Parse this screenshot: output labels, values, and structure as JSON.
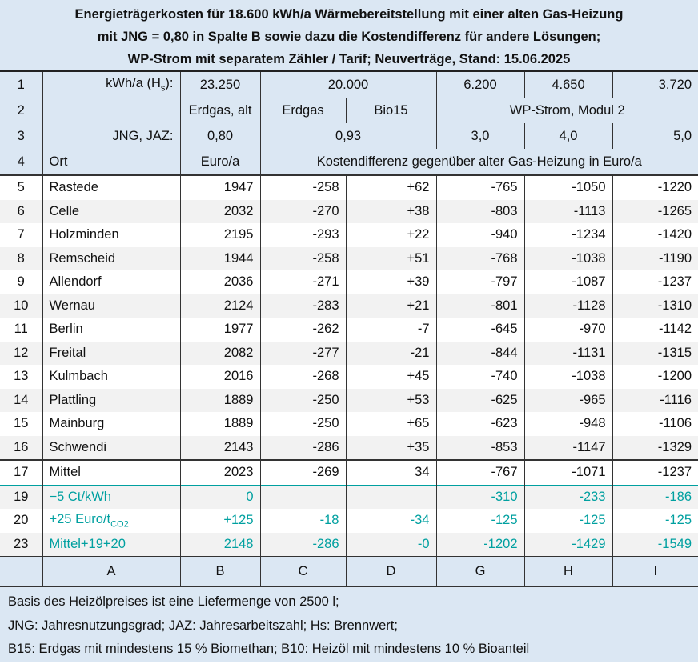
{
  "title": [
    "Energieträgerkosten für 18.600 kWh/a Wärmebereitstellung mit einer alten Gas-Heizung",
    "mit JNG = 0,80 in Spalte B sowie dazu die Kostendifferenz für andere Lösungen;",
    "WP-Strom mit separatem Zähler / Tarif; Neuverträge, Stand: 15.06.2025"
  ],
  "header": {
    "r1": {
      "n": "1",
      "label": "kWh/a (H",
      "label_sub": "s",
      "label_end": "):",
      "b": "23.250",
      "cd": "20.000",
      "g": "6.200",
      "h": "4.650",
      "i": "3.720"
    },
    "r2": {
      "n": "2",
      "b": "Erdgas, alt",
      "c": "Erdgas",
      "d": "Bio15",
      "ghi": "WP-Strom, Modul 2"
    },
    "r3": {
      "n": "3",
      "label": "JNG, JAZ:",
      "b": "0,80",
      "cd": "0,93",
      "g": "3,0",
      "h": "4,0",
      "i": "5,0"
    },
    "r4": {
      "n": "4",
      "label": "Ort",
      "b": "Euro/a",
      "rest": "Kostendifferenz gegenüber alter Gas-Heizung in Euro/a"
    }
  },
  "rows": [
    [
      "5",
      "Rastede",
      "1947",
      "-258",
      "+62",
      "-765",
      "-1050",
      "-1220"
    ],
    [
      "6",
      "Celle",
      "2032",
      "-270",
      "+38",
      "-803",
      "-1113",
      "-1265"
    ],
    [
      "7",
      "Holzminden",
      "2195",
      "-293",
      "+22",
      "-940",
      "-1234",
      "-1420"
    ],
    [
      "8",
      "Remscheid",
      "1944",
      "-258",
      "+51",
      "-768",
      "-1038",
      "-1190"
    ],
    [
      "9",
      "Allendorf",
      "2036",
      "-271",
      "+39",
      "-797",
      "-1087",
      "-1237"
    ],
    [
      "10",
      "Wernau",
      "2124",
      "-283",
      "+21",
      "-801",
      "-1128",
      "-1310"
    ],
    [
      "11",
      "Berlin",
      "1977",
      "-262",
      "-7",
      "-645",
      "-970",
      "-1142"
    ],
    [
      "12",
      "Freital",
      "2082",
      "-277",
      "-21",
      "-844",
      "-1131",
      "-1315"
    ],
    [
      "13",
      "Kulmbach",
      "2016",
      "-268",
      "+45",
      "-740",
      "-1038",
      "-1200"
    ],
    [
      "14",
      "Plattling",
      "1889",
      "-250",
      "+53",
      "-625",
      "-965",
      "-1116"
    ],
    [
      "15",
      "Mainburg",
      "1889",
      "-250",
      "+65",
      "-623",
      "-948",
      "-1106"
    ],
    [
      "16",
      "Schwendi",
      "2143",
      "-286",
      "+35",
      "-853",
      "-1147",
      "-1329"
    ]
  ],
  "mittel": [
    "17",
    "Mittel",
    "2023",
    "-269",
    "34",
    "-767",
    "-1071",
    "-1237"
  ],
  "extra": [
    [
      "19",
      "−5 Ct/kWh",
      "0",
      "",
      "",
      "-310",
      "-233",
      "-186"
    ],
    [
      "20",
      "+25 Euro/t",
      "+125",
      "-18",
      "-34",
      "-125",
      "-125",
      "-125"
    ],
    [
      "23",
      "Mittel+19+20",
      "2148",
      "-286",
      "-0",
      "-1202",
      "-1429",
      "-1549"
    ]
  ],
  "extra_sub": "CO2",
  "letters": [
    "",
    "A",
    "B",
    "C",
    "D",
    "G",
    "H",
    "I"
  ],
  "footer": [
    "Basis des Heizölpreises ist eine Liefermenge von 2500 l;",
    "JNG: Jahresnutzungsgrad; JAZ: Jahresarbeitszahl; Hs: Brennwert;",
    "B15: Erdgas mit mindestens 15 % Biomethan; B10: Heizöl mit mindestens 10 % Bioanteil"
  ],
  "colors": {
    "header_bg": "#dbe7f3",
    "teal": "#00a0a0",
    "alt_row": "#f2f2f2"
  }
}
